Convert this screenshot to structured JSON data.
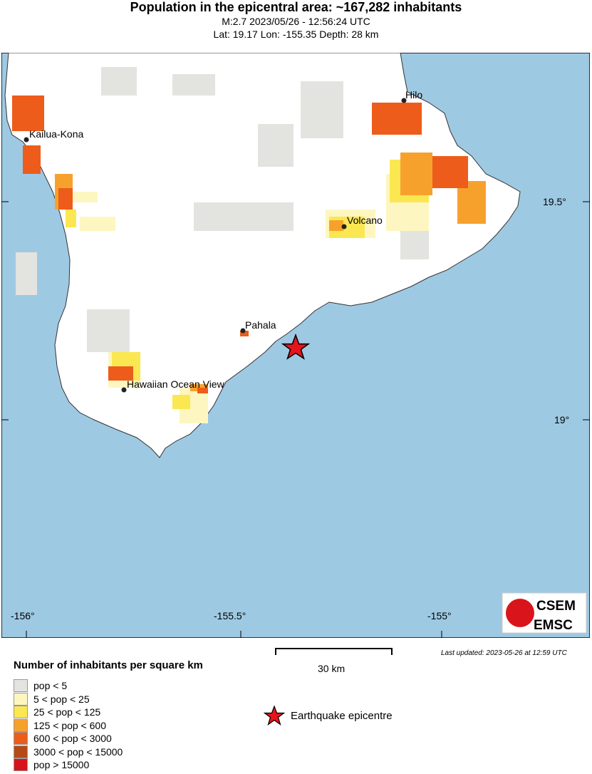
{
  "header": {
    "title": "Population in the epicentral area: ~167,282 inhabitants",
    "line1": "M:2.7 2023/05/26 - 12:56:24 UTC",
    "line2": "Lat: 19.17 Lon: -155.35 Depth: 28 km"
  },
  "map": {
    "places": [
      {
        "name": "Hilo"
      },
      {
        "name": "Kailua-Kona"
      },
      {
        "name": "Volcano"
      },
      {
        "name": "Pahala"
      },
      {
        "name": "Hawaiian Ocean View"
      }
    ],
    "lat_ticks": [
      "19.5°",
      "19°"
    ],
    "lon_ticks": [
      "-156°",
      "-155.5°",
      "-155°"
    ],
    "sea_color": "#9ec9e2",
    "land_color": "#ffffff",
    "epicenter_color": "#e8141b"
  },
  "logo": {
    "top": "CSEM",
    "bottom": "EMSC"
  },
  "scale": {
    "label": "30 km"
  },
  "updated": "Last updated: 2023-05-26 at 12:59 UTC",
  "legend": {
    "title": "Number of inhabitants per square km",
    "items": [
      {
        "label": "pop < 5",
        "color": "#e3e3e0"
      },
      {
        "label": "5 < pop < 25",
        "color": "#fdf6c0"
      },
      {
        "label": "25 < pop < 125",
        "color": "#fbe751"
      },
      {
        "label": "125 < pop < 600",
        "color": "#f7a12d"
      },
      {
        "label": "600 < pop < 3000",
        "color": "#ee5c1b"
      },
      {
        "label": "3000 < pop < 15000",
        "color": "#b64a16"
      },
      {
        "label": "pop > 15000",
        "color": "#d8121a"
      }
    ],
    "epicentre_label": "Earthquake epicentre"
  }
}
